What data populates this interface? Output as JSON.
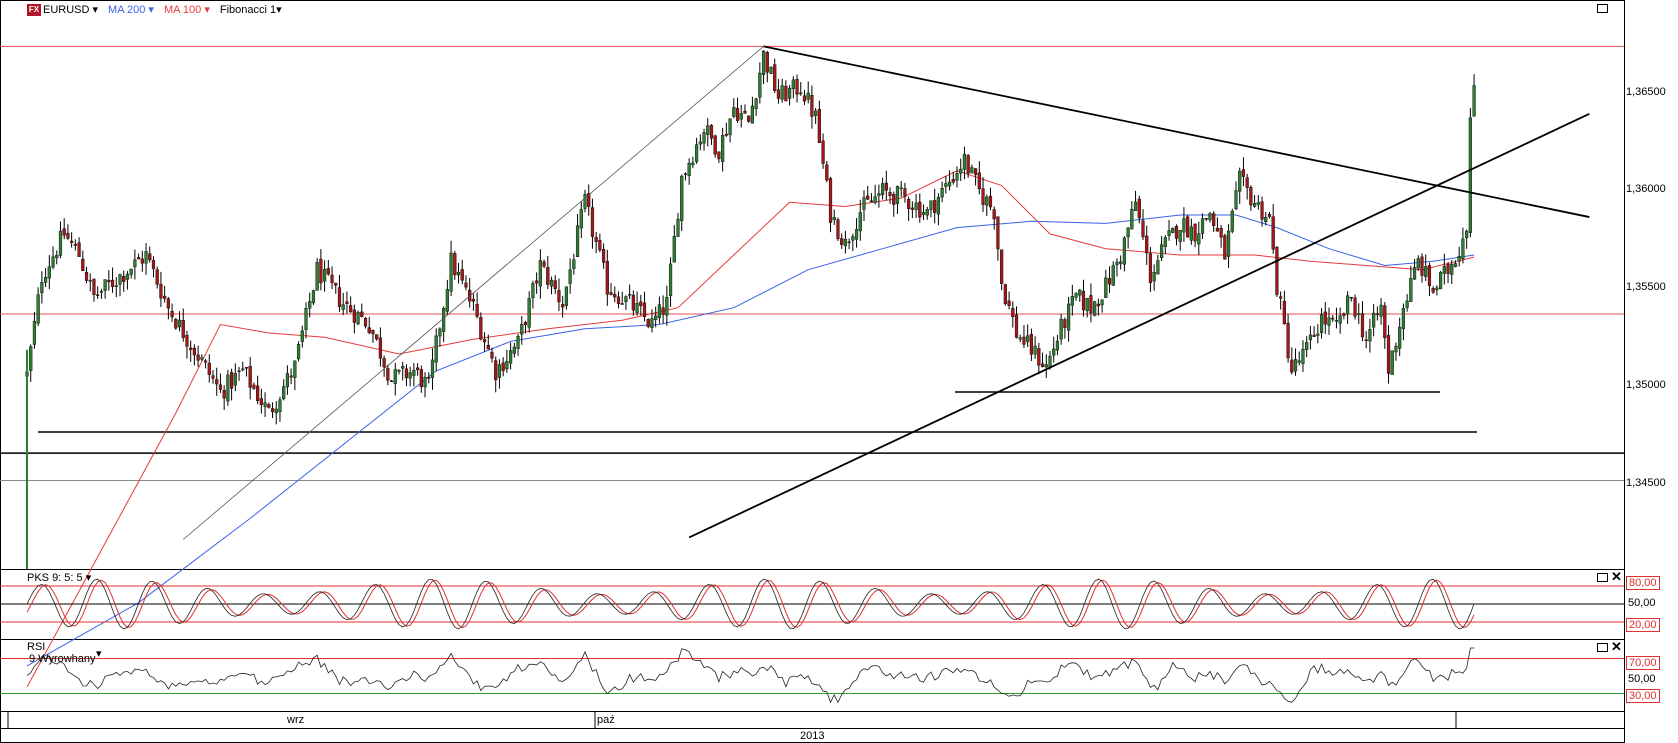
{
  "header": {
    "symbol": "EURUSD",
    "ma200": "MA 200",
    "ma100": "MA 100",
    "fibonacci": "Fibonacci 1",
    "fx_badge": "FX"
  },
  "colors": {
    "ma200": "#3a62e8",
    "ma100": "#e83a3a",
    "bull_candle": "#2e7d32",
    "bear_candle": "#a11818",
    "hline_red": "#e05050",
    "signal_red": "#e03030",
    "rsi_low_green": "#2aa02a"
  },
  "price_axis": {
    "min": 1.3396,
    "max": 1.3666,
    "labels": [
      "1,36500",
      "1,36000",
      "1,35500",
      "1,35000",
      "1,34500"
    ],
    "values": [
      1.365,
      1.36,
      1.355,
      1.35,
      1.345
    ]
  },
  "stoch_panel": {
    "title": "PKS 9: 5: 5",
    "levels": [
      "80,00",
      "50,00",
      "20,00"
    ],
    "level_values": [
      80,
      50,
      20
    ]
  },
  "rsi_panel": {
    "title": "RSI",
    "subtitle": "9 Wyrowhany",
    "levels": [
      "70,00",
      "50,00",
      "30,00"
    ],
    "level_values": [
      70,
      50,
      30
    ]
  },
  "time_axis": {
    "months": [
      "wrz",
      "paź"
    ],
    "year": "2013"
  },
  "chart_data": {
    "type": "candlestick",
    "symbol": "EURUSD",
    "anchors": [
      [
        0,
        1.3488
      ],
      [
        4,
        1.3535
      ],
      [
        10,
        1.3555
      ],
      [
        14,
        1.3545
      ],
      [
        18,
        1.3525
      ],
      [
        25,
        1.3535
      ],
      [
        32,
        1.3545
      ],
      [
        38,
        1.352
      ],
      [
        45,
        1.35
      ],
      [
        52,
        1.348
      ],
      [
        58,
        1.349
      ],
      [
        65,
        1.347
      ],
      [
        72,
        1.3492
      ],
      [
        78,
        1.3538
      ],
      [
        85,
        1.3522
      ],
      [
        92,
        1.3512
      ],
      [
        98,
        1.3486
      ],
      [
        104,
        1.349
      ],
      [
        108,
        1.3482
      ],
      [
        114,
        1.3542
      ],
      [
        120,
        1.352
      ],
      [
        126,
        1.349
      ],
      [
        132,
        1.3503
      ],
      [
        138,
        1.354
      ],
      [
        144,
        1.3522
      ],
      [
        150,
        1.357
      ],
      [
        156,
        1.353
      ],
      [
        162,
        1.3522
      ],
      [
        168,
        1.3512
      ],
      [
        172,
        1.3522
      ],
      [
        176,
        1.3582
      ],
      [
        182,
        1.3605
      ],
      [
        186,
        1.3595
      ],
      [
        190,
        1.3615
      ],
      [
        194,
        1.3608
      ],
      [
        198,
        1.364
      ],
      [
        202,
        1.362
      ],
      [
        208,
        1.3625
      ],
      [
        212,
        1.361
      ],
      [
        216,
        1.3565
      ],
      [
        220,
        1.355
      ],
      [
        224,
        1.3566
      ],
      [
        230,
        1.3575
      ],
      [
        236,
        1.3572
      ],
      [
        242,
        1.3565
      ],
      [
        248,
        1.358
      ],
      [
        252,
        1.359
      ],
      [
        256,
        1.3575
      ],
      [
        260,
        1.3566
      ],
      [
        262,
        1.3532
      ],
      [
        266,
        1.3508
      ],
      [
        270,
        1.35
      ],
      [
        274,
        1.3492
      ],
      [
        278,
        1.351
      ],
      [
        282,
        1.3525
      ],
      [
        286,
        1.352
      ],
      [
        290,
        1.353
      ],
      [
        294,
        1.3545
      ],
      [
        298,
        1.357
      ],
      [
        302,
        1.3535
      ],
      [
        306,
        1.355
      ],
      [
        310,
        1.356
      ],
      [
        314,
        1.3556
      ],
      [
        318,
        1.3565
      ],
      [
        322,
        1.3545
      ],
      [
        326,
        1.358
      ],
      [
        330,
        1.357
      ],
      [
        334,
        1.3562
      ],
      [
        336,
        1.353
      ],
      [
        340,
        1.349
      ],
      [
        344,
        1.35
      ],
      [
        348,
        1.3515
      ],
      [
        352,
        1.351
      ],
      [
        356,
        1.3525
      ],
      [
        360,
        1.3505
      ],
      [
        364,
        1.352
      ],
      [
        366,
        1.349
      ],
      [
        370,
        1.352
      ],
      [
        374,
        1.3542
      ],
      [
        378,
        1.3528
      ],
      [
        382,
        1.3538
      ],
      [
        385,
        1.3548
      ],
      [
        387,
        1.356
      ],
      [
        388,
        1.3612
      ],
      [
        389,
        1.363
      ]
    ],
    "ma200_values": [
      [
        0,
        1.335
      ],
      [
        30,
        1.338
      ],
      [
        60,
        1.342
      ],
      [
        90,
        1.3462
      ],
      [
        110,
        1.349
      ],
      [
        130,
        1.3504
      ],
      [
        150,
        1.351
      ],
      [
        170,
        1.3512
      ],
      [
        190,
        1.352
      ],
      [
        210,
        1.3538
      ],
      [
        230,
        1.3548
      ],
      [
        250,
        1.3558
      ],
      [
        270,
        1.3561
      ],
      [
        290,
        1.356
      ],
      [
        310,
        1.3564
      ],
      [
        325,
        1.3564
      ],
      [
        336,
        1.3558
      ],
      [
        350,
        1.3548
      ],
      [
        365,
        1.354
      ],
      [
        378,
        1.3542
      ],
      [
        389,
        1.3545
      ]
    ],
    "ma100_values": [
      [
        0,
        1.334
      ],
      [
        20,
        1.3405
      ],
      [
        40,
        1.347
      ],
      [
        52,
        1.3512
      ],
      [
        65,
        1.3508
      ],
      [
        80,
        1.3506
      ],
      [
        100,
        1.3498
      ],
      [
        120,
        1.3505
      ],
      [
        140,
        1.351
      ],
      [
        160,
        1.3514
      ],
      [
        175,
        1.352
      ],
      [
        190,
        1.3545
      ],
      [
        205,
        1.357
      ],
      [
        220,
        1.3568
      ],
      [
        235,
        1.3572
      ],
      [
        250,
        1.3585
      ],
      [
        262,
        1.3578
      ],
      [
        275,
        1.3555
      ],
      [
        290,
        1.3548
      ],
      [
        310,
        1.3545
      ],
      [
        330,
        1.3545
      ],
      [
        345,
        1.3542
      ],
      [
        360,
        1.354
      ],
      [
        375,
        1.3538
      ],
      [
        389,
        1.3544
      ]
    ],
    "horizontal_lines_red": [
      1.3644,
      1.3517
    ],
    "support_lines": [
      1.348,
      1.3461,
      1.3451
    ],
    "gray_line": 1.3438,
    "trendlines": [
      {
        "from": [
          198,
          1.3644
        ],
        "to": [
          420,
          1.3563
        ]
      },
      {
        "from": [
          178,
          1.3411
        ],
        "to": [
          420,
          1.3612
        ]
      }
    ],
    "fibonacci_line": {
      "from": [
        42,
        1.341
      ],
      "to": [
        198,
        1.3644
      ]
    }
  }
}
